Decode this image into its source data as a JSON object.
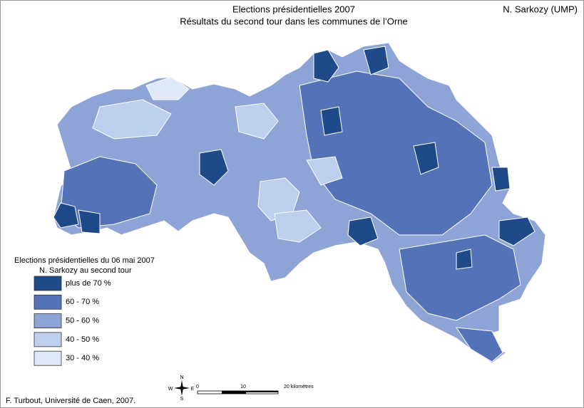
{
  "header": {
    "title": "Elections présidentielles 2007",
    "subtitle": "Résultats du second tour dans les communes de l’Orne",
    "candidate": "N. Sarkozy (UMP)"
  },
  "legend": {
    "title": "Elections présidentielles du 06 mai 2007",
    "subtitle": "N. Sarkozy au second tour",
    "items": [
      {
        "label": "plus de 70 %",
        "color": "#1e4a8a"
      },
      {
        "label": "60 - 70 %",
        "color": "#5372b8"
      },
      {
        "label": "50 - 60 %",
        "color": "#8fa4d6"
      },
      {
        "label": "40 - 50 %",
        "color": "#bcd0ee"
      },
      {
        "label": "30 - 40 %",
        "color": "#dfe8f6"
      }
    ]
  },
  "scale": {
    "labels": [
      "0",
      "10",
      "20 kilomètres"
    ]
  },
  "compass": {
    "n": "N",
    "s": "S",
    "e": "E",
    "w": "W"
  },
  "credit": "F. Turbout, Université de Caen, 2007."
}
